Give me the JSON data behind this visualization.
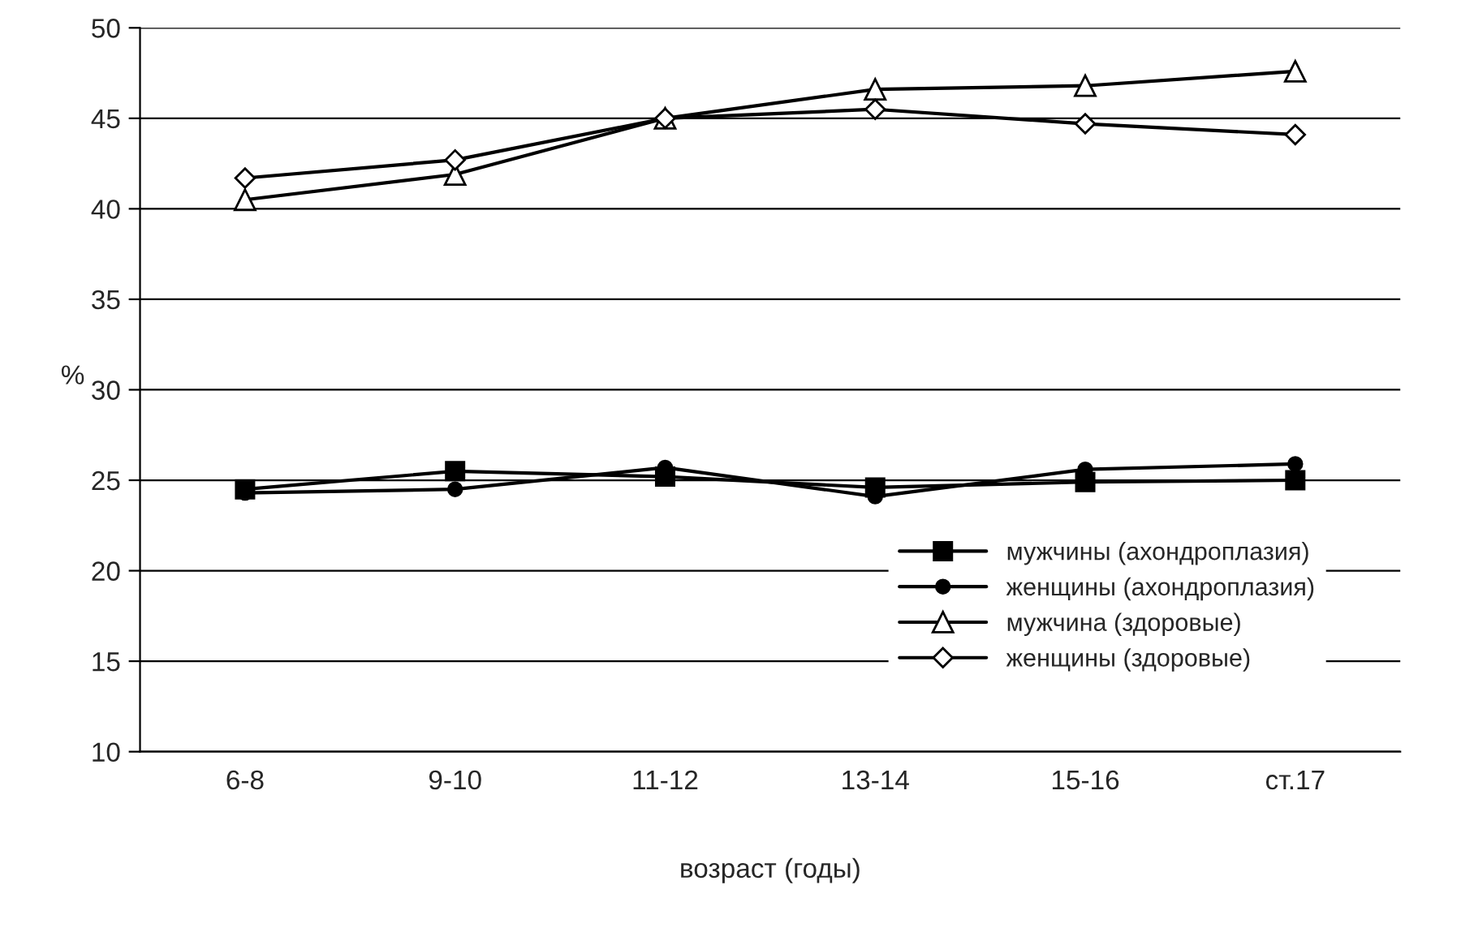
{
  "chart_data": {
    "type": "line",
    "xlabel": "возраст (годы)",
    "ylabel": "%",
    "categories": [
      "6-8",
      "9-10",
      "11-12",
      "13-14",
      "15-16",
      "ст.17"
    ],
    "series": [
      {
        "name": "мужчины (ахондроплазия)",
        "color": "#000000",
        "marker": "square",
        "values": [
          24.5,
          25.5,
          25.2,
          24.6,
          24.9,
          25.0
        ]
      },
      {
        "name": "женщины (ахондроплазия)",
        "color": "#000000",
        "marker": "circle",
        "values": [
          24.3,
          24.5,
          25.7,
          24.1,
          25.6,
          25.9
        ]
      },
      {
        "name": "мужчина (здоровые)",
        "color": "#000000",
        "marker": "triangle",
        "values": [
          40.5,
          41.9,
          45.0,
          46.6,
          46.8,
          47.6
        ]
      },
      {
        "name": "женщины (здоровые)",
        "color": "#000000",
        "marker": "diamond",
        "values": [
          41.7,
          42.7,
          45.0,
          45.5,
          44.7,
          44.1
        ]
      }
    ],
    "ylim": [
      10,
      50
    ],
    "yticks": [
      10,
      15,
      20,
      25,
      30,
      35,
      40,
      45,
      50
    ],
    "grid": "y",
    "legend": "bottom right",
    "line_style": "solid"
  }
}
